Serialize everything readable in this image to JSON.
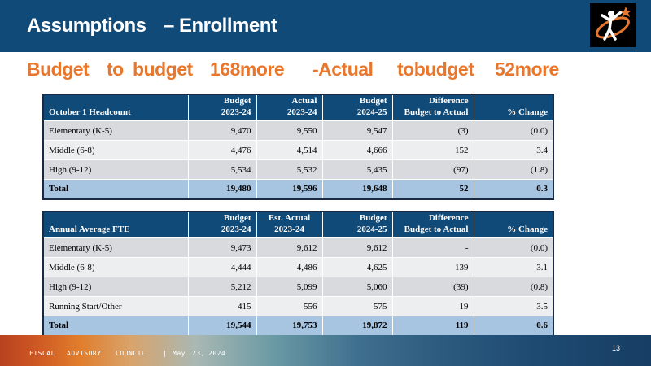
{
  "header": {
    "title_left": "Assumptions",
    "title_right": "– Enrollment"
  },
  "subtitle": {
    "parts": [
      "Budget",
      "to",
      "budget",
      "168more",
      "-Actual",
      "tobudget",
      "52more"
    ]
  },
  "colors": {
    "title_bar": "#0f4a78",
    "subtitle": "#e8772e",
    "table_header": "#0f4a78",
    "total_row": "#a7c4e0"
  },
  "table_headcount": {
    "headers": [
      [
        "October 1 Headcount"
      ],
      [
        "Budget",
        "2023-24"
      ],
      [
        "Actual",
        "2023-24"
      ],
      [
        "Budget",
        "2024-25"
      ],
      [
        "Difference",
        "Budget to Actual"
      ],
      [
        "% Change"
      ]
    ],
    "rows": [
      [
        "Elementary (K-5)",
        "9,470",
        "9,550",
        "9,547",
        "(3)",
        "(0.0)"
      ],
      [
        "Middle (6-8)",
        "4,476",
        "4,514",
        "4,666",
        "152",
        "3.4"
      ],
      [
        "High (9-12)",
        "5,534",
        "5,532",
        "5,435",
        "(97)",
        "(1.8)"
      ]
    ],
    "total": [
      "Total",
      "19,480",
      "19,596",
      "19,648",
      "52",
      "0.3"
    ]
  },
  "table_fte": {
    "headers": [
      [
        "Annual Average FTE"
      ],
      [
        "Budget",
        "2023-24"
      ],
      [
        "Est. Actual",
        "2023-24"
      ],
      [
        "Budget",
        "2024-25"
      ],
      [
        "Difference",
        "Budget to Actual"
      ],
      [
        "% Change"
      ]
    ],
    "rows": [
      [
        "Elementary (K-5)",
        "9,473",
        "9,612",
        "9,612",
        "-",
        "(0.0)"
      ],
      [
        "Middle (6-8)",
        "4,444",
        "4,486",
        "4,625",
        "139",
        "3.1"
      ],
      [
        "High (9-12)",
        "5,212",
        "5,099",
        "5,060",
        "(39)",
        "(0.8)"
      ],
      [
        "Running Start/Other",
        "415",
        "556",
        "575",
        "19",
        "3.5"
      ]
    ],
    "total": [
      "Total",
      "19,544",
      "19,753",
      "19,872",
      "119",
      "0.6"
    ]
  },
  "footer": {
    "parts": [
      "FISCAL",
      "ADVISORY",
      "COUNCIL",
      "|",
      "May",
      "23,",
      "2024"
    ],
    "page_number": "13"
  }
}
